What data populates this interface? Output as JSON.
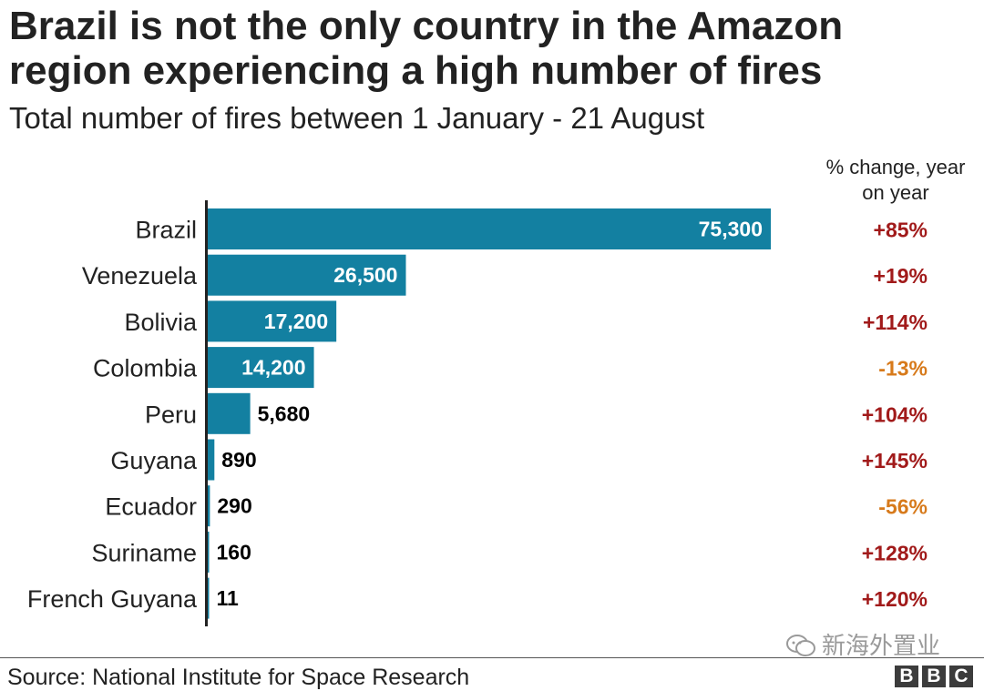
{
  "title": "Brazil is not the only country in the Amazon region experiencing a high number of fires",
  "subtitle": "Total number of fires between 1 January - 21 August",
  "change_header": "% change, year on year",
  "source": "Source: National Institute for Space Research",
  "watermark": "新海外置业",
  "logo_letters": [
    "B",
    "B",
    "C"
  ],
  "colors": {
    "bar": "#1380a1",
    "increase": "#a11a1a",
    "decrease": "#d77a1b",
    "text": "#222222"
  },
  "chart_data": {
    "type": "bar",
    "orientation": "horizontal",
    "categories": [
      "Brazil",
      "Venezuela",
      "Bolivia",
      "Colombia",
      "Peru",
      "Guyana",
      "Ecuador",
      "Suriname",
      "French Guyana"
    ],
    "values": [
      75300,
      26500,
      17200,
      14200,
      5680,
      890,
      290,
      160,
      11
    ],
    "value_labels": [
      "75,300",
      "26,500",
      "17,200",
      "14,200",
      "5,680",
      "890",
      "290",
      "160",
      "11"
    ],
    "pct_change": [
      85,
      19,
      114,
      -13,
      104,
      145,
      -56,
      128,
      120
    ],
    "pct_change_labels": [
      "+85%",
      "+19%",
      "+114%",
      "-13%",
      "+104%",
      "+145%",
      "-56%",
      "+128%",
      "+120%"
    ],
    "xlim": [
      0,
      75300
    ],
    "grid": false,
    "legend": "none"
  }
}
